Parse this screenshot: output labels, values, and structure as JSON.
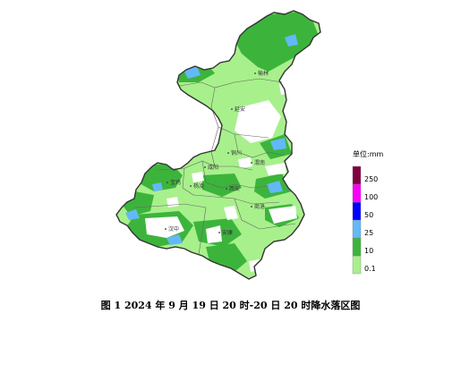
{
  "caption": "图 1  2024 年 9 月 19 日 20 时-20 日 20 时降水落区图",
  "legend": {
    "title": "单位:mm",
    "bins": [
      {
        "label": "0.1",
        "color": "#a8f08c"
      },
      {
        "label": "10",
        "color": "#3cb43c"
      },
      {
        "label": "25",
        "color": "#63b8f7"
      },
      {
        "label": "50",
        "color": "#0000fe"
      },
      {
        "label": "100",
        "color": "#fa00fa"
      },
      {
        "label": "250",
        "color": "#800040"
      }
    ]
  },
  "cities": [
    {
      "name": "榆林"
    },
    {
      "name": "延安"
    },
    {
      "name": "铜川"
    },
    {
      "name": "渭南"
    },
    {
      "name": "咸阳"
    },
    {
      "name": "宝鸡"
    },
    {
      "name": "杨凌"
    },
    {
      "name": "西安"
    },
    {
      "name": "商洛"
    },
    {
      "name": "汉中"
    },
    {
      "name": "安康"
    }
  ],
  "colors": {
    "light_green": "#a8f08c",
    "green": "#3cb43c",
    "blue": "#63b8f7",
    "no_rain": "#ffffff",
    "border": "#333333"
  }
}
